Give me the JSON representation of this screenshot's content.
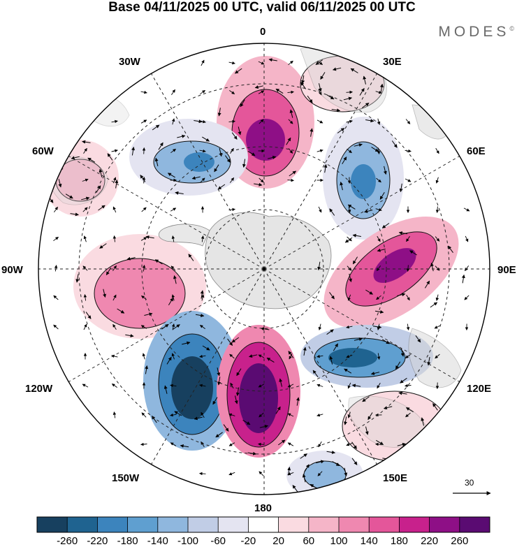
{
  "title": "Base 04/11/2025 00 UTC, valid 06/11/2025 00 UTC",
  "brand": "MODES",
  "brand_mark": "©",
  "longitude_labels": {
    "lon0": "0",
    "lon30e": "30E",
    "lon60e": "60E",
    "lon90e": "90E",
    "lon120e": "120E",
    "lon150e": "150E",
    "lon180": "180",
    "lon150w": "150W",
    "lon120w": "120W",
    "lon90w": "90W",
    "lon60w": "60W",
    "lon30w": "30W"
  },
  "vector_reference": {
    "value": "30"
  },
  "colorbar": {
    "labels": [
      "-260",
      "-220",
      "-180",
      "-140",
      "-100",
      "-60",
      "-20",
      "20",
      "60",
      "100",
      "140",
      "180",
      "220",
      "260"
    ],
    "colors": [
      "#17405f",
      "#1f6390",
      "#3c84bd",
      "#5f9fd0",
      "#8fb7de",
      "#c1cde6",
      "#e4e4f1",
      "#ffffff",
      "#fadbe1",
      "#f5b5c8",
      "#ef88b0",
      "#e4569a",
      "#c8218c",
      "#8e0f86",
      "#5a0b72"
    ]
  },
  "anomaly_centers": [
    {
      "id": "positive-near-0",
      "value": 220,
      "color": "#8e0f86"
    },
    {
      "id": "negative-near-45e",
      "value": -180,
      "color": "#3c84bd"
    },
    {
      "id": "negative-near-40w",
      "value": -180,
      "color": "#3c84bd"
    },
    {
      "id": "positive-near-65w",
      "value": 100,
      "color": "#f5b5c8"
    },
    {
      "id": "positive-near-100w",
      "value": 140,
      "color": "#ef88b0"
    },
    {
      "id": "positive-near-100e",
      "value": 220,
      "color": "#8e0f86"
    },
    {
      "id": "negative-near-140e",
      "value": -220,
      "color": "#1f6390"
    },
    {
      "id": "negative-near-140w",
      "value": -260,
      "color": "#17405f"
    },
    {
      "id": "positive-near-170e",
      "value": 260,
      "color": "#5a0b72"
    },
    {
      "id": "positive-near-20e-tip",
      "value": 60,
      "color": "#fadbe1"
    },
    {
      "id": "positive-near-125e-south",
      "value": 60,
      "color": "#fadbe1"
    },
    {
      "id": "negative-near-160e-edge",
      "value": -100,
      "color": "#8fb7de"
    }
  ]
}
